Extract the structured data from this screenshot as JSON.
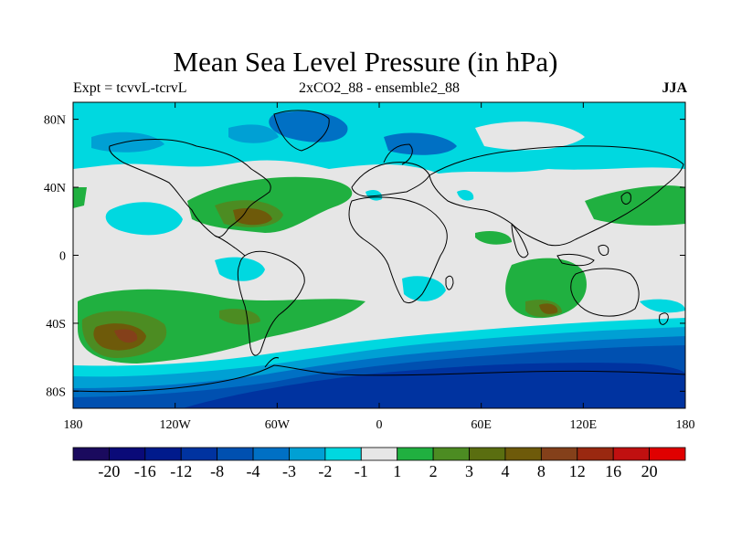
{
  "header": {
    "title": "Mean Sea Level Pressure (in hPa)",
    "subtitle_left": "Expt = tcvvL-tcrvL",
    "subtitle_center": "2xCO2_88 - ensemble2_88",
    "subtitle_right": "JJA"
  },
  "axes": {
    "x_ticks": [
      {
        "value": -180,
        "label": "180"
      },
      {
        "value": -120,
        "label": "120W"
      },
      {
        "value": -60,
        "label": "60W"
      },
      {
        "value": 0,
        "label": "0"
      },
      {
        "value": 60,
        "label": "60E"
      },
      {
        "value": 120,
        "label": "120E"
      },
      {
        "value": 180,
        "label": "180"
      }
    ],
    "y_ticks": [
      {
        "value": 80,
        "label": "80N"
      },
      {
        "value": 40,
        "label": "40N"
      },
      {
        "value": 0,
        "label": "0"
      },
      {
        "value": -40,
        "label": "40S"
      },
      {
        "value": -80,
        "label": "80S"
      }
    ],
    "lon_range": [
      -180,
      180
    ],
    "lat_range": [
      -90,
      90
    ]
  },
  "colorbar": {
    "colors": [
      "#1a0a5e",
      "#0a0a78",
      "#001a8c",
      "#0033a0",
      "#0050b0",
      "#0070c4",
      "#00a0d4",
      "#00d8e0",
      "#e6e6e6",
      "#20b040",
      "#4c8c22",
      "#5a6e10",
      "#6e5a0a",
      "#84401a",
      "#9a2810",
      "#c01010",
      "#e00000"
    ],
    "labels": [
      "-20",
      "-16",
      "-12",
      "-8",
      "-4",
      "-3",
      "-2",
      "-1",
      "1",
      "2",
      "3",
      "4",
      "8",
      "12",
      "16",
      "20"
    ]
  }
}
